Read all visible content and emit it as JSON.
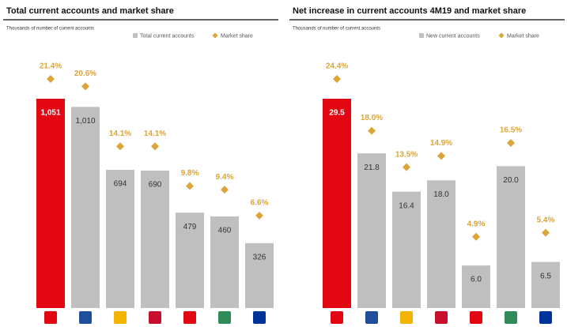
{
  "chart_data": [
    {
      "type": "bar",
      "title": "Total current accounts and market share",
      "subtitle": "Thousands of number of current accounts",
      "categories": [
        null,
        null,
        null,
        null,
        null,
        null,
        null
      ],
      "series": [
        {
          "name": "Total current accounts",
          "colors": [
            "#e30613",
            "#bfbfbf",
            "#bfbfbf",
            "#bfbfbf",
            "#bfbfbf",
            "#bfbfbf",
            "#bfbfbf"
          ],
          "values": [
            1051,
            1010,
            694,
            690,
            479,
            460,
            326
          ],
          "value_labels": [
            "1,051",
            "1,010",
            "694",
            "690",
            "479",
            "460",
            "326"
          ]
        },
        {
          "name": "Market share",
          "color": "#dba53a",
          "axis": "y2",
          "marker": "diamond",
          "values": [
            21.4,
            20.6,
            14.1,
            14.1,
            9.8,
            9.4,
            6.6
          ],
          "value_labels": [
            "21.4%",
            "20.6%",
            "14.1%",
            "14.1%",
            "9.8%",
            "9.4%",
            "6.6%"
          ]
        }
      ]
    },
    {
      "type": "bar",
      "title": "Net increase in current accounts 4M19 and market share",
      "subtitle": "Thousands of number of current accounts",
      "categories": [
        null,
        null,
        null,
        null,
        null,
        null,
        null
      ],
      "series": [
        {
          "name": "New current accounts",
          "colors": [
            "#e30613",
            "#bfbfbf",
            "#bfbfbf",
            "#bfbfbf",
            "#bfbfbf",
            "#bfbfbf",
            "#bfbfbf"
          ],
          "values": [
            29.5,
            21.8,
            16.4,
            18.0,
            6.0,
            20.0,
            6.5
          ],
          "value_labels": [
            "29.5",
            "21.8",
            "16.4",
            "18.0",
            "6.0",
            "20.0",
            "6.5"
          ]
        },
        {
          "name": "Market share",
          "color": "#dba53a",
          "axis": "y2",
          "marker": "diamond",
          "values": [
            24.4,
            18.0,
            13.5,
            14.9,
            4.9,
            16.5,
            5.4
          ],
          "value_labels": [
            "24.4%",
            "18.0%",
            "13.5%",
            "14.9%",
            "4.9%",
            "16.5%",
            "5.4%"
          ]
        }
      ]
    }
  ]
}
